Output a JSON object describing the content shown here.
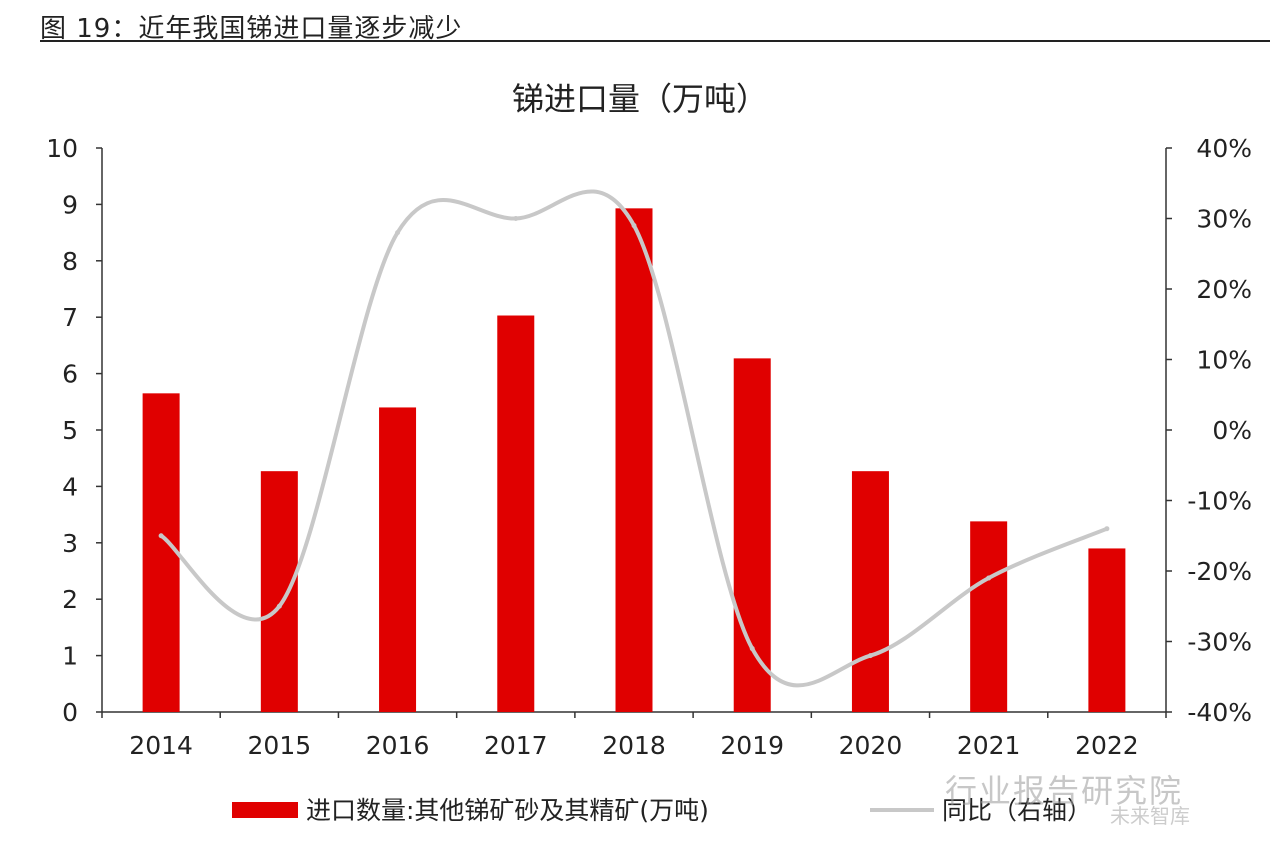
{
  "figure_caption": "图 19：近年我国锑进口量逐步减少",
  "watermark": "行业报告研究院",
  "watermark_sub": "未来智库",
  "chart_data": {
    "type": "bar",
    "title": "锑进口量（万吨）",
    "categories": [
      "2014",
      "2015",
      "2016",
      "2017",
      "2018",
      "2019",
      "2020",
      "2021",
      "2022"
    ],
    "series": [
      {
        "name": "进口数量:其他锑矿砂及其精矿(万吨)",
        "type": "bar",
        "axis": "left",
        "color": "#e00000",
        "values": [
          5.65,
          4.27,
          5.4,
          7.03,
          8.93,
          6.27,
          4.27,
          3.38,
          2.9
        ]
      },
      {
        "name": "同比（右轴）",
        "type": "line",
        "axis": "right",
        "color": "#c8c8c8",
        "values": [
          -15,
          -25,
          28,
          30,
          29,
          -31,
          -32,
          -21,
          -14
        ]
      }
    ],
    "y_left": {
      "min": 0,
      "max": 10,
      "ticks": [
        "0",
        "1",
        "2",
        "3",
        "4",
        "5",
        "6",
        "7",
        "8",
        "9",
        "10"
      ]
    },
    "y_right": {
      "min": -40,
      "max": 40,
      "ticks": [
        "-40%",
        "-30%",
        "-20%",
        "-10%",
        "0%",
        "10%",
        "20%",
        "30%",
        "40%"
      ]
    },
    "grid": false,
    "legend_position": "bottom"
  }
}
